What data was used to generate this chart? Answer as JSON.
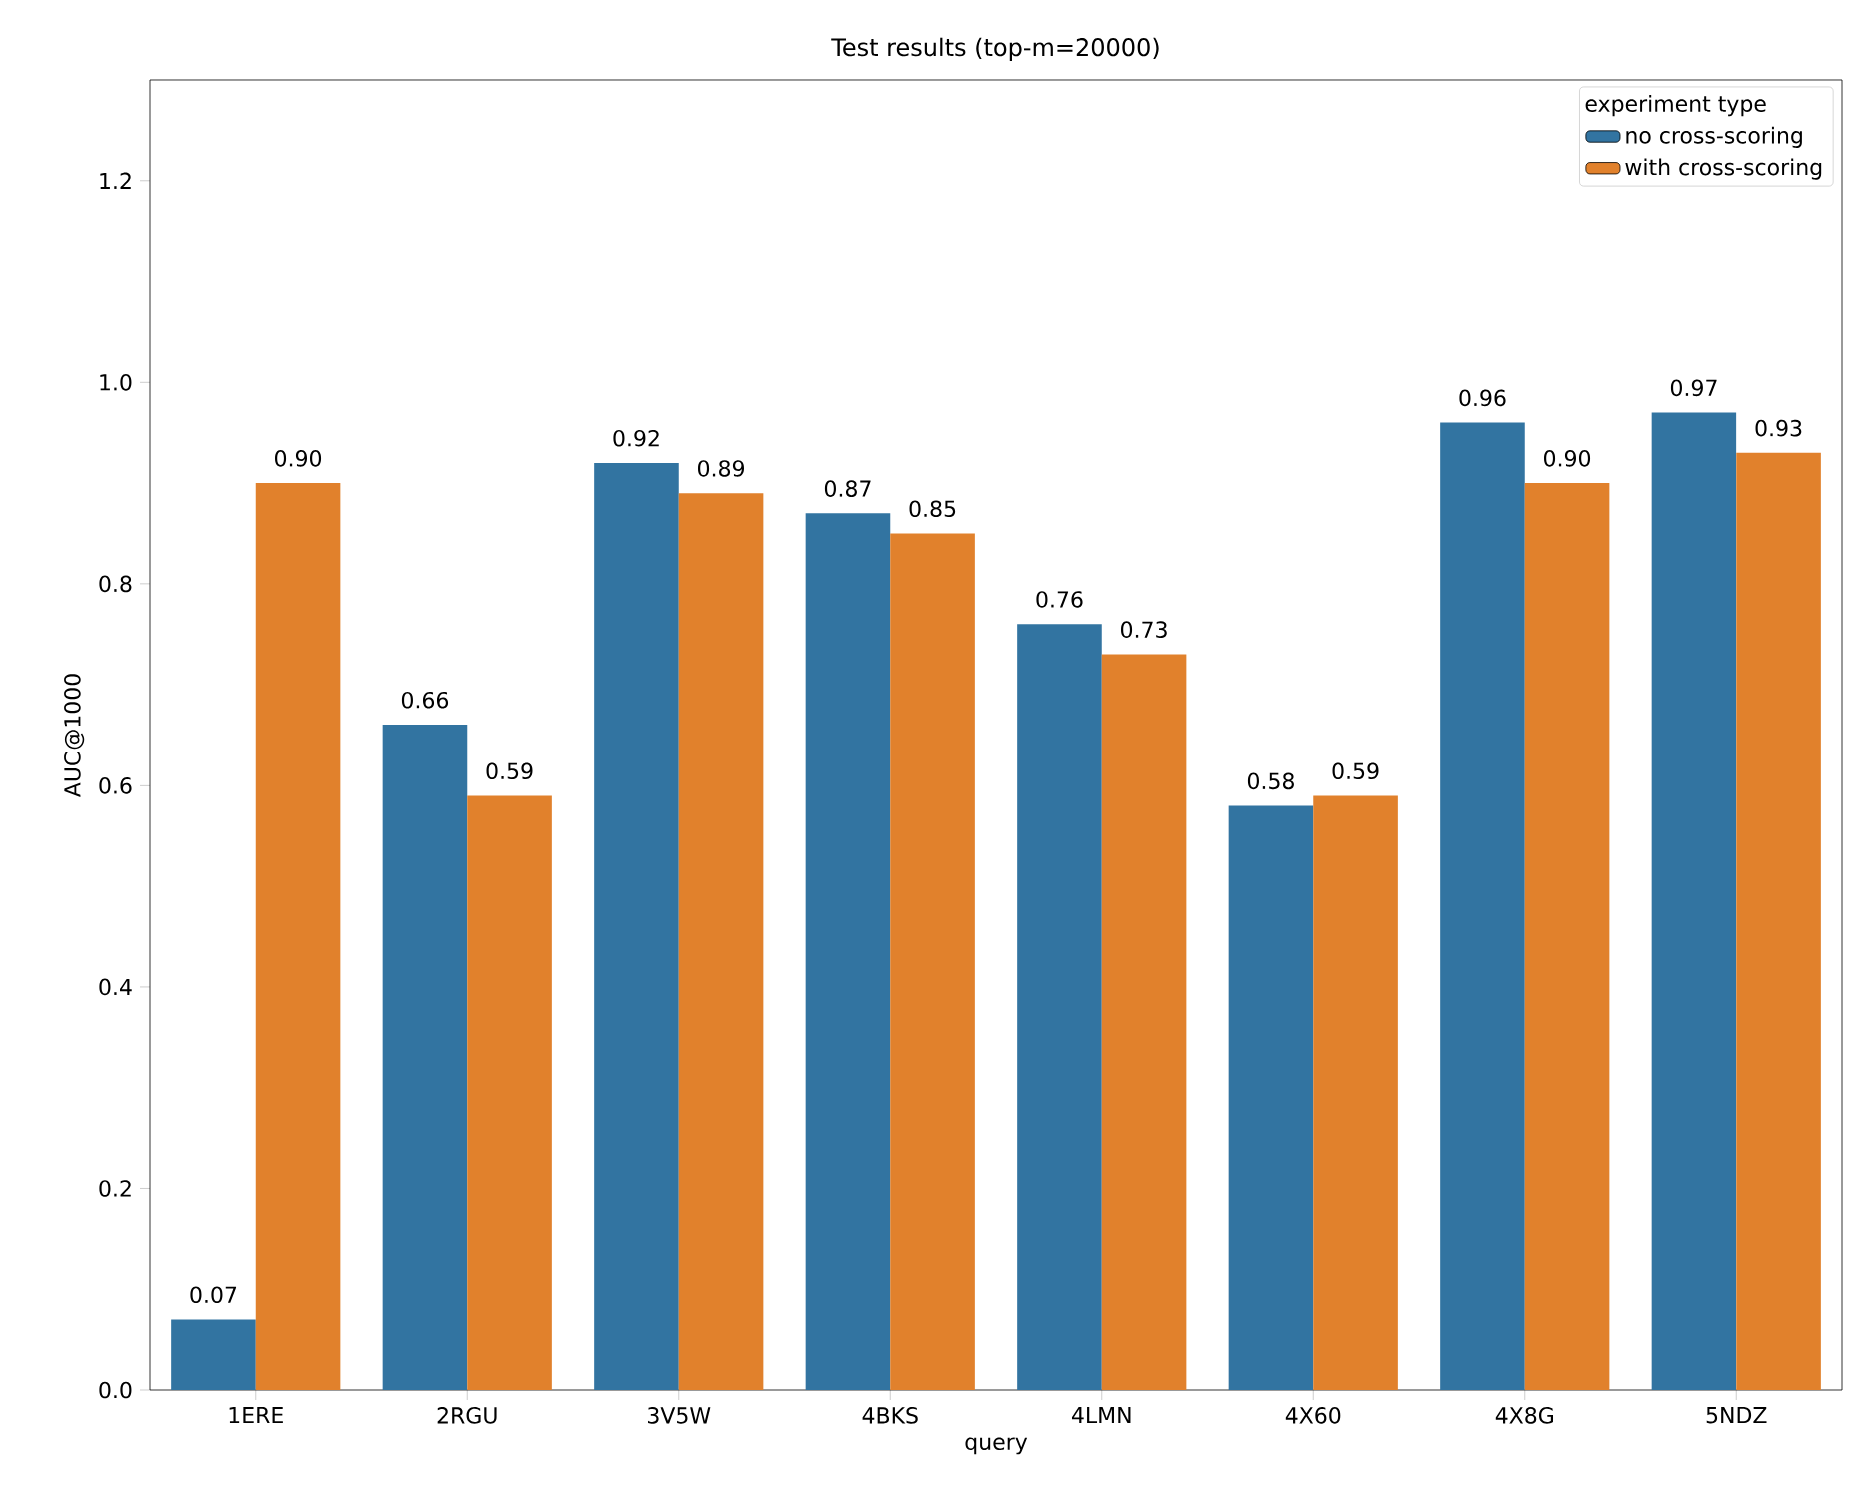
{
  "chart_data": {
    "type": "bar",
    "title": "Test results (top-m=20000)",
    "xlabel": "query",
    "ylabel": "AUC@1000",
    "legend_title": "experiment type",
    "categories": [
      "1ERE",
      "2RGU",
      "3V5W",
      "4BKS",
      "4LMN",
      "4X60",
      "4X8G",
      "5NDZ"
    ],
    "series": [
      {
        "name": "no cross-scoring",
        "color": "#3274a1",
        "values": [
          0.07,
          0.66,
          0.92,
          0.87,
          0.76,
          0.58,
          0.96,
          0.97
        ],
        "value_labels": [
          "0.07",
          "0.66",
          "0.92",
          "0.87",
          "0.76",
          "0.58",
          "0.96",
          "0.97"
        ]
      },
      {
        "name": "with cross-scoring",
        "color": "#e1812c",
        "values": [
          0.9,
          0.59,
          0.89,
          0.85,
          0.73,
          0.59,
          0.9,
          0.93
        ],
        "value_labels": [
          "0.90",
          "0.59",
          "0.89",
          "0.85",
          "0.73",
          "0.59",
          "0.90",
          "0.93"
        ]
      }
    ],
    "ylim": [
      0,
      1.3
    ],
    "yticks": [
      {
        "value": 0,
        "label": "0.0"
      },
      {
        "value": 0.2,
        "label": "0.2"
      },
      {
        "value": 0.4,
        "label": "0.4"
      },
      {
        "value": 0.6,
        "label": "0.6"
      },
      {
        "value": 0.8,
        "label": "0.8"
      },
      {
        "value": 1.0,
        "label": "1.0"
      },
      {
        "value": 1.2,
        "label": "1.2"
      }
    ],
    "legend": "top right",
    "grid": false
  }
}
